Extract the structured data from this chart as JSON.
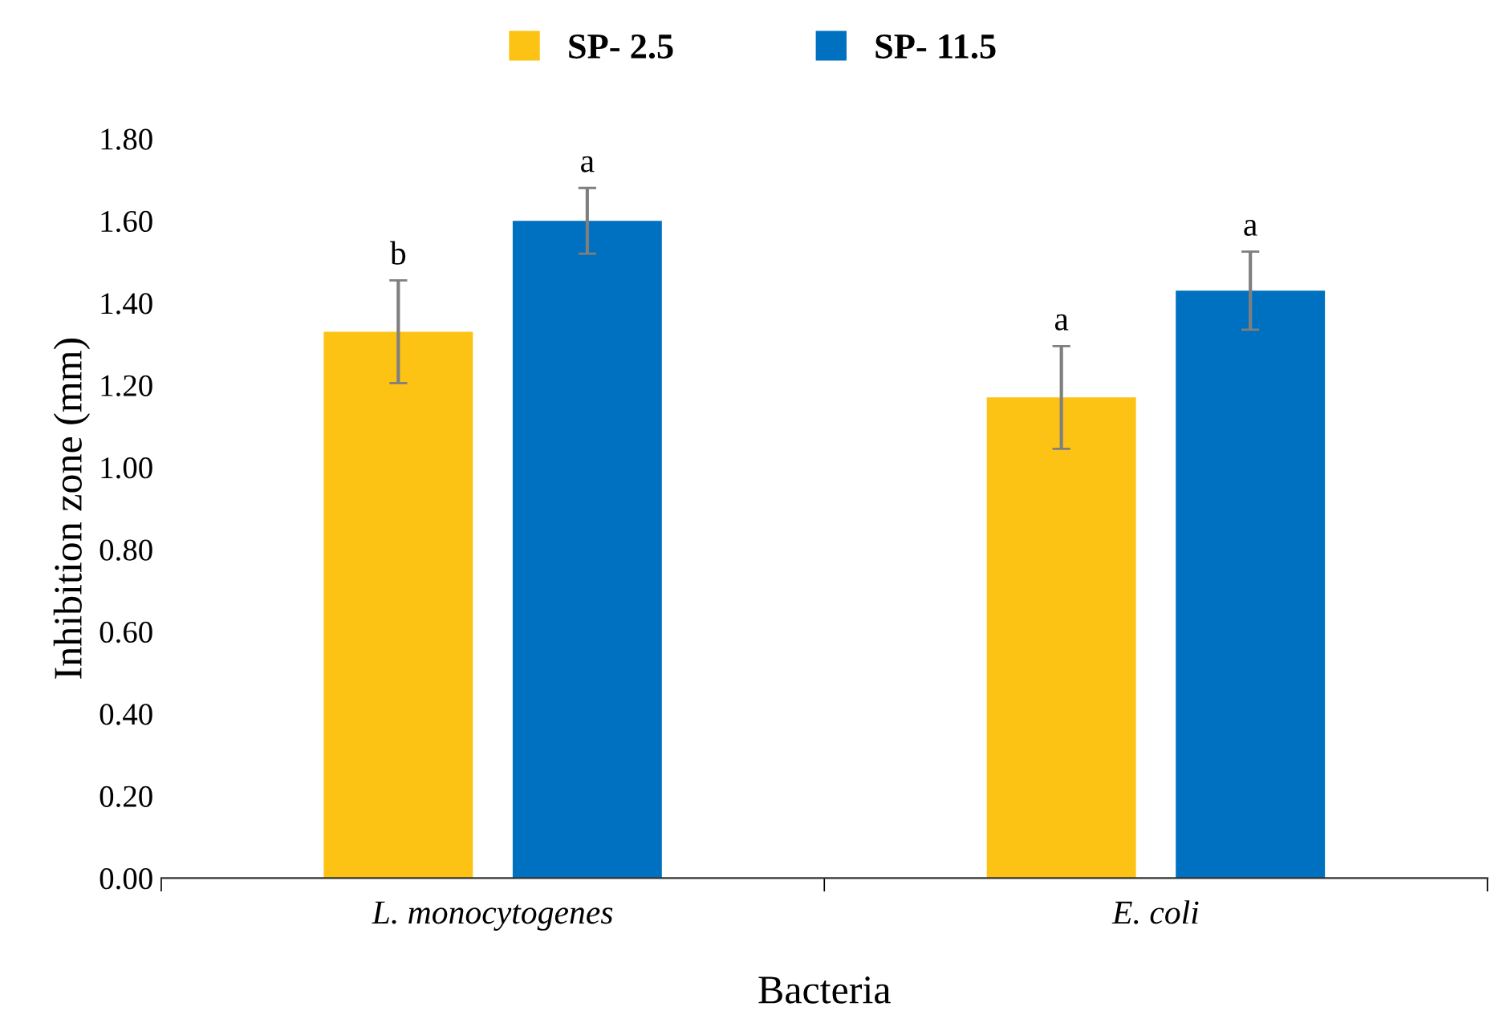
{
  "chart_data": {
    "type": "bar",
    "xlabel": "Bacteria",
    "ylabel": "Inhibition zone (mm)",
    "categories": [
      "L. monocytogenes",
      "E. coli"
    ],
    "series": [
      {
        "name": "SP- 2.5",
        "color": "#fcc314",
        "values": [
          1.33,
          1.17
        ],
        "errors": [
          0.125,
          0.125
        ]
      },
      {
        "name": "SP- 11.5",
        "color": "#0070c0",
        "values": [
          1.6,
          1.43
        ],
        "errors": [
          0.08,
          0.095
        ]
      }
    ],
    "ylim": [
      0,
      1.8
    ],
    "yticks": [
      {
        "value": 0,
        "label": "0.00"
      },
      {
        "value": 0.2,
        "label": "0.20"
      },
      {
        "value": 0.4,
        "label": "0.40"
      },
      {
        "value": 0.6,
        "label": "0.60"
      },
      {
        "value": 0.8,
        "label": "0.80"
      },
      {
        "value": 1.0,
        "label": "1.00"
      },
      {
        "value": 1.2,
        "label": "1.20"
      },
      {
        "value": 1.4,
        "label": "1.40"
      },
      {
        "value": 1.6,
        "label": "1.60"
      },
      {
        "value": 1.8,
        "label": "1.80"
      }
    ],
    "annotations": [
      "b",
      "a",
      "a",
      "a"
    ],
    "legend": "top",
    "grid": false
  }
}
